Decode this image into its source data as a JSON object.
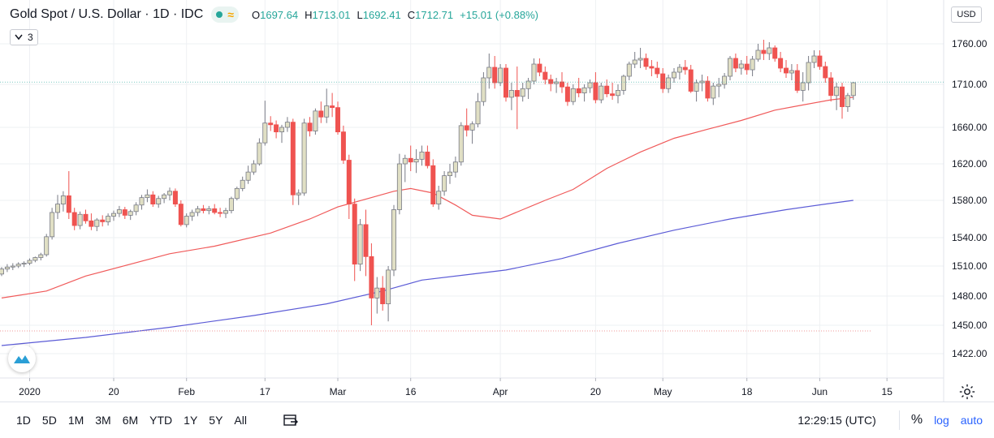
{
  "header": {
    "title": "Gold Spot / U.S. Dollar · 1D · IDC",
    "ohlc": {
      "o_label": "O",
      "o": "1697.64",
      "h_label": "H",
      "h": "1713.01",
      "l_label": "L",
      "l": "1692.41",
      "c_label": "C",
      "c": "1712.71",
      "change": "+15.01 (+0.88%)"
    },
    "study_count": "3",
    "currency": "USD"
  },
  "colors": {
    "up": "#e0dfc4",
    "down": "#ef5350",
    "ma_fast": "#f05a5a",
    "ma_slow": "#5b5bd6",
    "grid": "#eef0f3",
    "text": "#131722",
    "accent": "#2962ff"
  },
  "icons": {
    "status": "green-dot-icon",
    "wave": "wave-icon",
    "chevron": "chevron-down-icon",
    "goto": "goto-date-icon",
    "settings": "gear-icon",
    "logo": "tradingview-logo-icon"
  },
  "bottom": {
    "ranges": [
      "1D",
      "5D",
      "1M",
      "3M",
      "6M",
      "YTD",
      "1Y",
      "5Y",
      "All"
    ],
    "clock": "12:29:15 (UTC)",
    "percent": "%",
    "log": "log",
    "auto": "auto"
  },
  "chart_data": {
    "type": "candlestick",
    "title": "Gold Spot / U.S. Dollar · 1D · IDC",
    "y_ticks": [
      1422,
      1450,
      1480,
      1510,
      1540,
      1580,
      1620,
      1660,
      1710,
      1760
    ],
    "y_tick_labels": [
      "1422.00",
      "1450.00",
      "1480.00",
      "1510.00",
      "1540.00",
      "1580.00",
      "1620.00",
      "1660.00",
      "1710.00",
      "1760.00"
    ],
    "x_ticks": [
      {
        "i": 5,
        "label": "2020"
      },
      {
        "i": 20,
        "label": "20"
      },
      {
        "i": 33,
        "label": "Feb"
      },
      {
        "i": 47,
        "label": "17"
      },
      {
        "i": 60,
        "label": "Mar"
      },
      {
        "i": 73,
        "label": "16"
      },
      {
        "i": 89,
        "label": "Apr"
      },
      {
        "i": 106,
        "label": "20"
      },
      {
        "i": 118,
        "label": "May"
      },
      {
        "i": 133,
        "label": "18"
      },
      {
        "i": 146,
        "label": "Jun"
      },
      {
        "i": 158,
        "label": "15"
      }
    ],
    "last_price_line": 1712.71,
    "candles": [
      [
        1502,
        1509,
        1500,
        1507
      ],
      [
        1507,
        1512,
        1504,
        1509
      ],
      [
        1509,
        1513,
        1506,
        1510
      ],
      [
        1510,
        1514,
        1508,
        1512
      ],
      [
        1512,
        1515,
        1509,
        1513
      ],
      [
        1513,
        1518,
        1511,
        1516
      ],
      [
        1516,
        1520,
        1514,
        1519
      ],
      [
        1519,
        1524,
        1516,
        1522
      ],
      [
        1522,
        1544,
        1520,
        1541
      ],
      [
        1541,
        1572,
        1538,
        1567
      ],
      [
        1567,
        1586,
        1560,
        1576
      ],
      [
        1576,
        1590,
        1568,
        1585
      ],
      [
        1585,
        1612,
        1560,
        1567
      ],
      [
        1567,
        1572,
        1548,
        1553
      ],
      [
        1553,
        1568,
        1549,
        1565
      ],
      [
        1565,
        1570,
        1555,
        1558
      ],
      [
        1558,
        1566,
        1548,
        1552
      ],
      [
        1552,
        1561,
        1547,
        1559
      ],
      [
        1559,
        1564,
        1552,
        1557
      ],
      [
        1557,
        1566,
        1553,
        1563
      ],
      [
        1563,
        1569,
        1558,
        1566
      ],
      [
        1566,
        1574,
        1562,
        1570
      ],
      [
        1570,
        1573,
        1560,
        1564
      ],
      [
        1564,
        1570,
        1559,
        1568
      ],
      [
        1568,
        1578,
        1564,
        1575
      ],
      [
        1575,
        1586,
        1570,
        1583
      ],
      [
        1583,
        1592,
        1578,
        1586
      ],
      [
        1586,
        1590,
        1573,
        1576
      ],
      [
        1576,
        1585,
        1572,
        1582
      ],
      [
        1582,
        1588,
        1577,
        1586
      ],
      [
        1586,
        1594,
        1580,
        1590
      ],
      [
        1590,
        1593,
        1573,
        1576
      ],
      [
        1576,
        1580,
        1552,
        1554
      ],
      [
        1554,
        1566,
        1551,
        1563
      ],
      [
        1563,
        1570,
        1558,
        1567
      ],
      [
        1567,
        1574,
        1563,
        1571
      ],
      [
        1571,
        1575,
        1566,
        1569
      ],
      [
        1569,
        1574,
        1565,
        1571
      ],
      [
        1571,
        1576,
        1565,
        1567
      ],
      [
        1567,
        1572,
        1562,
        1566
      ],
      [
        1566,
        1572,
        1561,
        1569
      ],
      [
        1569,
        1584,
        1566,
        1582
      ],
      [
        1582,
        1595,
        1580,
        1593
      ],
      [
        1593,
        1606,
        1590,
        1602
      ],
      [
        1602,
        1618,
        1598,
        1611
      ],
      [
        1611,
        1624,
        1608,
        1620
      ],
      [
        1620,
        1648,
        1618,
        1643
      ],
      [
        1643,
        1691,
        1640,
        1665
      ],
      [
        1665,
        1673,
        1656,
        1663
      ],
      [
        1663,
        1668,
        1648,
        1655
      ],
      [
        1655,
        1663,
        1643,
        1660
      ],
      [
        1660,
        1672,
        1655,
        1666
      ],
      [
        1666,
        1670,
        1575,
        1586
      ],
      [
        1586,
        1592,
        1575,
        1588
      ],
      [
        1588,
        1670,
        1585,
        1665
      ],
      [
        1665,
        1672,
        1650,
        1656
      ],
      [
        1656,
        1682,
        1652,
        1679
      ],
      [
        1679,
        1690,
        1665,
        1672
      ],
      [
        1672,
        1705,
        1665,
        1685
      ],
      [
        1685,
        1700,
        1672,
        1683
      ],
      [
        1683,
        1690,
        1652,
        1655
      ],
      [
        1655,
        1662,
        1620,
        1624
      ],
      [
        1624,
        1630,
        1560,
        1576
      ],
      [
        1576,
        1582,
        1495,
        1512
      ],
      [
        1512,
        1560,
        1505,
        1554
      ],
      [
        1554,
        1570,
        1500,
        1520
      ],
      [
        1520,
        1534,
        1450,
        1478
      ],
      [
        1478,
        1499,
        1462,
        1488
      ],
      [
        1488,
        1500,
        1465,
        1472
      ],
      [
        1472,
        1510,
        1454,
        1506
      ],
      [
        1506,
        1575,
        1500,
        1570
      ],
      [
        1570,
        1631,
        1565,
        1620
      ],
      [
        1620,
        1630,
        1600,
        1626
      ],
      [
        1626,
        1640,
        1612,
        1622
      ],
      [
        1622,
        1636,
        1610,
        1625
      ],
      [
        1625,
        1640,
        1618,
        1633
      ],
      [
        1633,
        1640,
        1615,
        1618
      ],
      [
        1618,
        1625,
        1573,
        1576
      ],
      [
        1576,
        1596,
        1570,
        1590
      ],
      [
        1590,
        1612,
        1585,
        1607
      ],
      [
        1607,
        1620,
        1598,
        1611
      ],
      [
        1611,
        1628,
        1605,
        1622
      ],
      [
        1622,
        1666,
        1618,
        1662
      ],
      [
        1662,
        1682,
        1650,
        1657
      ],
      [
        1657,
        1667,
        1642,
        1664
      ],
      [
        1664,
        1700,
        1660,
        1690
      ],
      [
        1690,
        1725,
        1685,
        1718
      ],
      [
        1718,
        1748,
        1705,
        1731
      ],
      [
        1731,
        1745,
        1705,
        1712
      ],
      [
        1712,
        1735,
        1708,
        1730
      ],
      [
        1730,
        1735,
        1690,
        1695
      ],
      [
        1695,
        1712,
        1680,
        1703
      ],
      [
        1703,
        1732,
        1658,
        1696
      ],
      [
        1696,
        1712,
        1690,
        1705
      ],
      [
        1705,
        1718,
        1693,
        1714
      ],
      [
        1714,
        1742,
        1710,
        1735
      ],
      [
        1735,
        1742,
        1720,
        1725
      ],
      [
        1725,
        1732,
        1710,
        1716
      ],
      [
        1716,
        1722,
        1702,
        1711
      ],
      [
        1711,
        1718,
        1700,
        1713
      ],
      [
        1713,
        1725,
        1700,
        1707
      ],
      [
        1707,
        1712,
        1685,
        1690
      ],
      [
        1690,
        1710,
        1686,
        1705
      ],
      [
        1705,
        1718,
        1695,
        1700
      ],
      [
        1700,
        1710,
        1690,
        1706
      ],
      [
        1706,
        1716,
        1700,
        1712
      ],
      [
        1712,
        1725,
        1688,
        1692
      ],
      [
        1692,
        1712,
        1688,
        1708
      ],
      [
        1708,
        1716,
        1695,
        1699
      ],
      [
        1699,
        1712,
        1692,
        1697
      ],
      [
        1697,
        1710,
        1688,
        1703
      ],
      [
        1703,
        1722,
        1698,
        1720
      ],
      [
        1720,
        1738,
        1715,
        1735
      ],
      [
        1735,
        1750,
        1730,
        1740
      ],
      [
        1740,
        1755,
        1730,
        1742
      ],
      [
        1742,
        1748,
        1728,
        1732
      ],
      [
        1732,
        1740,
        1720,
        1730
      ],
      [
        1730,
        1738,
        1718,
        1723
      ],
      [
        1723,
        1730,
        1700,
        1705
      ],
      [
        1705,
        1722,
        1700,
        1718
      ],
      [
        1718,
        1730,
        1712,
        1725
      ],
      [
        1725,
        1735,
        1716,
        1731
      ],
      [
        1731,
        1740,
        1722,
        1728
      ],
      [
        1728,
        1734,
        1700,
        1702
      ],
      [
        1702,
        1716,
        1690,
        1712
      ],
      [
        1712,
        1722,
        1702,
        1714
      ],
      [
        1714,
        1720,
        1690,
        1694
      ],
      [
        1694,
        1712,
        1686,
        1708
      ],
      [
        1708,
        1718,
        1695,
        1710
      ],
      [
        1710,
        1724,
        1705,
        1720
      ],
      [
        1720,
        1745,
        1715,
        1742
      ],
      [
        1742,
        1748,
        1725,
        1730
      ],
      [
        1730,
        1740,
        1722,
        1735
      ],
      [
        1735,
        1745,
        1722,
        1728
      ],
      [
        1728,
        1745,
        1720,
        1741
      ],
      [
        1741,
        1760,
        1738,
        1752
      ],
      [
        1752,
        1765,
        1740,
        1748
      ],
      [
        1748,
        1762,
        1740,
        1755
      ],
      [
        1755,
        1758,
        1738,
        1742
      ],
      [
        1742,
        1750,
        1725,
        1730
      ],
      [
        1730,
        1740,
        1718,
        1724
      ],
      [
        1724,
        1735,
        1715,
        1727
      ],
      [
        1727,
        1735,
        1700,
        1703
      ],
      [
        1703,
        1725,
        1690,
        1712
      ],
      [
        1712,
        1745,
        1703,
        1737
      ],
      [
        1737,
        1752,
        1730,
        1745
      ],
      [
        1745,
        1752,
        1728,
        1732
      ],
      [
        1732,
        1738,
        1712,
        1718
      ],
      [
        1718,
        1725,
        1690,
        1697
      ],
      [
        1697,
        1712,
        1680,
        1707
      ],
      [
        1707,
        1712,
        1670,
        1684
      ],
      [
        1684,
        1700,
        1678,
        1697
      ],
      [
        1697,
        1713,
        1692,
        1712
      ]
    ],
    "moving_averages": [
      {
        "color_key": "ma_fast",
        "points": [
          [
            0,
            1478
          ],
          [
            8,
            1485
          ],
          [
            15,
            1500
          ],
          [
            30,
            1523
          ],
          [
            38,
            1531
          ],
          [
            48,
            1545
          ],
          [
            55,
            1560
          ],
          [
            60,
            1573
          ],
          [
            66,
            1583
          ],
          [
            70,
            1590
          ],
          [
            73,
            1593
          ],
          [
            77,
            1588
          ],
          [
            81,
            1575
          ],
          [
            84,
            1564
          ],
          [
            89,
            1560
          ],
          [
            93,
            1570
          ],
          [
            97,
            1580
          ],
          [
            102,
            1592
          ],
          [
            108,
            1615
          ],
          [
            114,
            1633
          ],
          [
            120,
            1648
          ],
          [
            126,
            1658
          ],
          [
            132,
            1668
          ],
          [
            138,
            1680
          ],
          [
            143,
            1686
          ],
          [
            148,
            1692
          ],
          [
            152,
            1695
          ]
        ]
      },
      {
        "color_key": "ma_slow",
        "points": [
          [
            0,
            1430
          ],
          [
            15,
            1438
          ],
          [
            30,
            1448
          ],
          [
            45,
            1460
          ],
          [
            58,
            1472
          ],
          [
            68,
            1485
          ],
          [
            75,
            1496
          ],
          [
            84,
            1502
          ],
          [
            90,
            1506
          ],
          [
            100,
            1518
          ],
          [
            110,
            1534
          ],
          [
            120,
            1548
          ],
          [
            130,
            1560
          ],
          [
            140,
            1570
          ],
          [
            147,
            1576
          ],
          [
            152,
            1580
          ]
        ]
      }
    ]
  }
}
